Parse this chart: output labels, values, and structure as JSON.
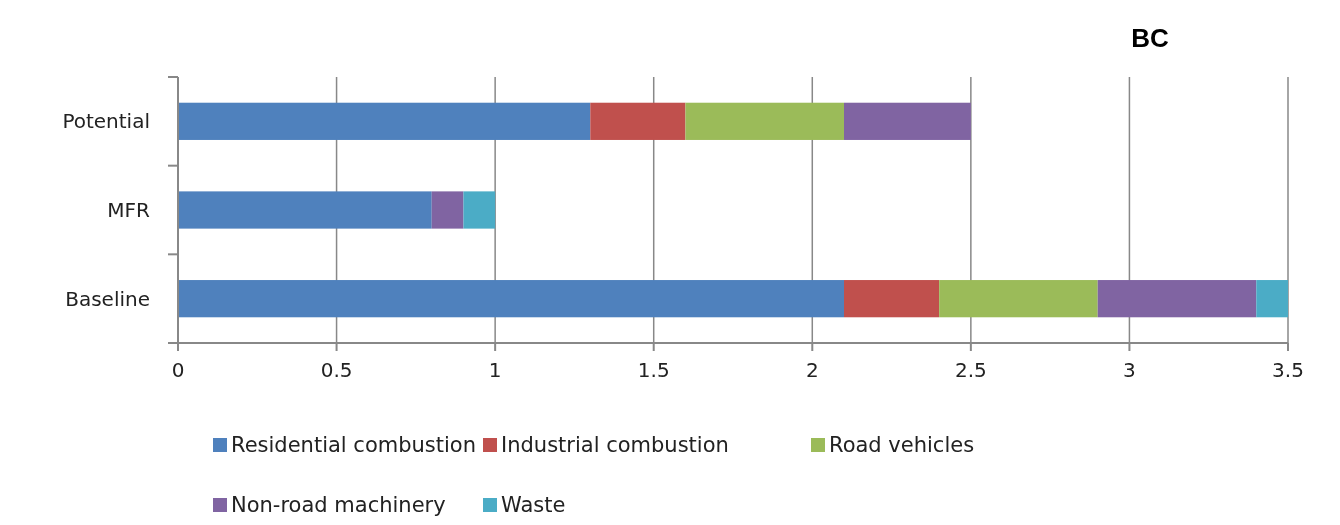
{
  "chart_data": {
    "type": "bar",
    "title": "BC",
    "orientation": "horizontal",
    "stacked": true,
    "categories": [
      "Potential",
      "MFR",
      "Baseline"
    ],
    "series": [
      {
        "name": "Residential combustion",
        "color": "#4f81bd",
        "values": [
          1.3,
          0.8,
          2.1
        ]
      },
      {
        "name": "Industrial combustion",
        "color": "#c0504d",
        "values": [
          0.3,
          0,
          0.3
        ]
      },
      {
        "name": "Road vehicles",
        "color": "#9bbb59",
        "values": [
          0.5,
          0,
          0.5
        ]
      },
      {
        "name": "Non-road machinery",
        "color": "#8064a2",
        "values": [
          0.4,
          0.1,
          0.5
        ]
      },
      {
        "name": "Waste",
        "color": "#4bacc6",
        "values": [
          0,
          0.1,
          0.1
        ]
      }
    ],
    "xlim": [
      0,
      3.5
    ],
    "xticks": [
      0,
      0.5,
      1,
      1.5,
      2,
      2.5,
      3,
      3.5
    ],
    "grid": "x",
    "legend": "bottom"
  }
}
